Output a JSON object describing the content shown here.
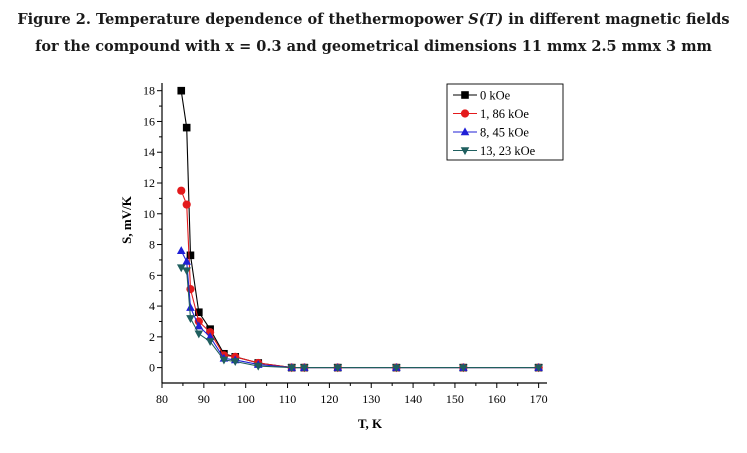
{
  "caption": {
    "line1_a": "Figure 2. Temperature dependence of thethermopower ",
    "line1_sym": "S(T)",
    "line1_b": " in different magnetic fields",
    "line2": "for the compound with x = 0.3 and geometrical dimensions 11 mmx 2.5 mmx 3 mm"
  },
  "chart_data": {
    "type": "line",
    "title": "",
    "xlabel": "T, K",
    "ylabel": "S, mV/K",
    "xlim": [
      80,
      172
    ],
    "ylim": [
      -1,
      18.5
    ],
    "xticks": [
      80,
      90,
      100,
      110,
      120,
      130,
      140,
      150,
      160,
      170
    ],
    "yticks": [
      0,
      2,
      4,
      6,
      8,
      10,
      12,
      14,
      16,
      18
    ],
    "grid": false,
    "legend_position": "top-right",
    "series": [
      {
        "name": "0 kOe",
        "color": "#000000",
        "marker": "square",
        "x": [
          84.6,
          85.9,
          86.8,
          88.8,
          91.5,
          94.8,
          97.5,
          103.0,
          111.0,
          114.0,
          122.0,
          136.0,
          152.0,
          170.0
        ],
        "y": [
          18.0,
          15.6,
          7.3,
          3.6,
          2.5,
          0.9,
          0.7,
          0.3,
          0.0,
          0.0,
          0.0,
          0.0,
          0.0,
          0.0
        ]
      },
      {
        "name": "1, 86 kOe",
        "color": "#e31a1c",
        "marker": "circle",
        "x": [
          84.6,
          85.9,
          86.8,
          88.8,
          91.5,
          94.8,
          97.5,
          103.0,
          111.0,
          114.0,
          122.0,
          136.0,
          152.0,
          170.0
        ],
        "y": [
          11.5,
          10.6,
          5.1,
          3.0,
          2.3,
          0.8,
          0.7,
          0.3,
          0.0,
          0.0,
          0.0,
          0.0,
          0.0,
          0.0
        ]
      },
      {
        "name": "8, 45 kOe",
        "color": "#1f1fd6",
        "marker": "triangle-up",
        "x": [
          84.6,
          85.9,
          86.8,
          88.8,
          91.5,
          94.8,
          97.5,
          103.0,
          111.0,
          114.0,
          122.0,
          136.0,
          152.0,
          170.0
        ],
        "y": [
          7.6,
          6.9,
          3.9,
          2.7,
          2.0,
          0.6,
          0.5,
          0.2,
          0.0,
          0.0,
          0.0,
          0.0,
          0.0,
          0.0
        ]
      },
      {
        "name": "13, 23 kOe",
        "color": "#1f5f5f",
        "marker": "triangle-down",
        "x": [
          84.6,
          85.9,
          86.8,
          88.8,
          91.5,
          94.8,
          97.5,
          103.0,
          111.0,
          114.0,
          122.0,
          136.0,
          152.0,
          170.0
        ],
        "y": [
          6.5,
          6.3,
          3.2,
          2.2,
          1.7,
          0.5,
          0.4,
          0.1,
          0.0,
          0.0,
          0.0,
          0.0,
          0.0,
          0.0
        ]
      }
    ]
  }
}
